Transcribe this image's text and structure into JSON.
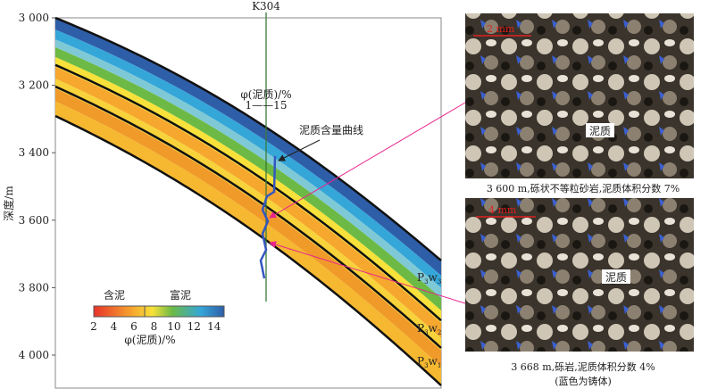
{
  "well": {
    "name": "K304",
    "curve_label": "φ(泥质)/%",
    "curve_range": "1——15",
    "annotation": "泥质含量曲线"
  },
  "axis": {
    "ylabel": "深度/m",
    "ticks": [
      "3 000",
      "3 200",
      "3 400",
      "3 600",
      "3 800",
      "4 000"
    ]
  },
  "legend": {
    "left_label": "含泥",
    "right_label": "富泥",
    "ticks": [
      "2",
      "4",
      "6",
      "8",
      "10",
      "12",
      "14"
    ],
    "title": "φ(泥质)/%",
    "colors": [
      "#e8332a",
      "#f6a72e",
      "#f7e13a",
      "#6cba45",
      "#35a6d8",
      "#2f5ea8"
    ]
  },
  "formations": [
    {
      "base": "P",
      "sub": "3",
      "w": "w",
      "idx": "3"
    },
    {
      "base": "P",
      "sub": "3",
      "w": "w",
      "idx": "2"
    },
    {
      "base": "P",
      "sub": "3",
      "w": "w",
      "idx": "1"
    }
  ],
  "micrographs": [
    {
      "scale": "2 mm",
      "label": "泥质",
      "caption": "3 600 m,砾状不等粒砂岩,泥质体积分数 7%"
    },
    {
      "scale": "4 mm",
      "label": "泥质",
      "caption": "3 668 m,砾岩,泥质体积分数 4%",
      "note": "(蓝色为铸体)"
    }
  ],
  "colors": {
    "pointer": "#e8248c",
    "well_line": "#3a7a3a"
  }
}
